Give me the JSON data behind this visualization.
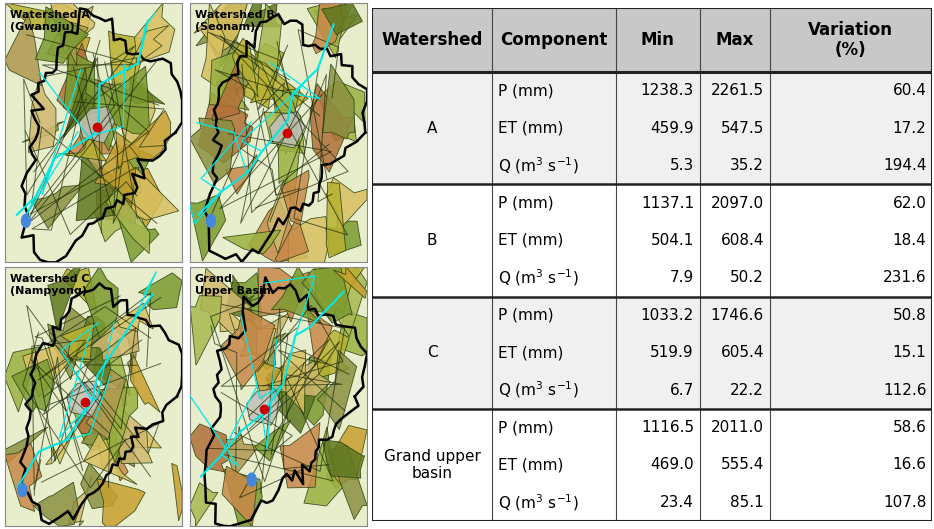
{
  "map_labels": [
    "Watershed A\n(Gwangju)",
    "Watershed B\n(Seonam)",
    "Watershed C\n(Nampyong)",
    "Grand\nUpper Basin"
  ],
  "table_headers": [
    "Watershed",
    "Component",
    "Min",
    "Max",
    "Variation\n(%)"
  ],
  "watersheds": [
    "A",
    "B",
    "C",
    "Grand upper\nbasin"
  ],
  "components_plain": [
    [
      "P (mm)",
      "ET (mm)",
      "Q"
    ],
    [
      "P (mm)",
      "ET (mm)",
      "Q"
    ],
    [
      "P (mm)",
      "ET (mm)",
      "Q"
    ],
    [
      "P (mm)",
      "ET (mm)",
      "Q"
    ]
  ],
  "min_vals": [
    [
      "1238.3",
      "459.9",
      "5.3"
    ],
    [
      "1137.1",
      "504.1",
      "7.9"
    ],
    [
      "1033.2",
      "519.9",
      "6.7"
    ],
    [
      "1116.5",
      "469.0",
      "23.4"
    ]
  ],
  "max_vals": [
    [
      "2261.5",
      "547.5",
      "35.2"
    ],
    [
      "2097.0",
      "608.4",
      "50.2"
    ],
    [
      "1746.6",
      "605.4",
      "22.2"
    ],
    [
      "2011.0",
      "555.4",
      "85.1"
    ]
  ],
  "variation_vals": [
    [
      "60.4",
      "17.2",
      "194.4"
    ],
    [
      "62.0",
      "18.4",
      "231.6"
    ],
    [
      "50.8",
      "15.1",
      "112.6"
    ],
    [
      "58.6",
      "16.6",
      "107.8"
    ]
  ],
  "header_bg": "#c8c8c8",
  "ws_col_bg": "#d8d8d8",
  "row_bg_a": "#f0f0f0",
  "row_bg_b": "#ffffff",
  "border_color": "#444444",
  "thick_border": "#222222",
  "text_color": "#000000",
  "map_outer_bg": "#e8edcc",
  "figure_bg": "#ffffff",
  "terrain_colors": [
    "#7a9a30",
    "#9ab040",
    "#b8b030",
    "#c8a030",
    "#c88848",
    "#b07038",
    "#d8c060",
    "#607820",
    "#a8b850",
    "#d0b870",
    "#8a9040",
    "#b09850"
  ],
  "river_color": "#00e8e8",
  "red_dot": "#cc0000",
  "blue_dot": "#4488dd"
}
